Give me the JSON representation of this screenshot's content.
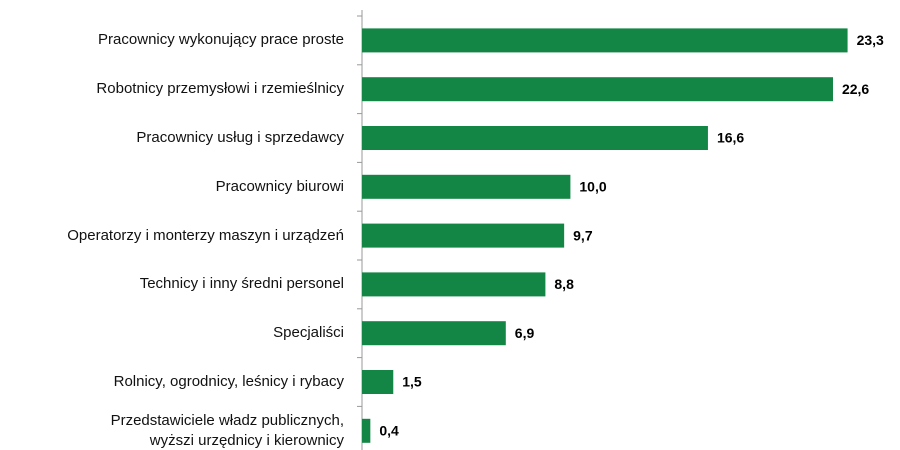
{
  "chart_data": {
    "type": "hbar",
    "categories": [
      "Pracownicy wykonujący prace proste",
      "Robotnicy przemysłowi i rzemieślnicy",
      "Pracownicy usług i sprzedawcy",
      "Pracownicy biurowi",
      "Operatorzy i monterzy maszyn i urządzeń",
      "Technicy i inny średni personel",
      "Specjaliści",
      "Rolnicy, ogrodnicy, leśnicy i rybacy",
      "Przedstawiciele władz publicznych,\nwyższi urzędnicy i kierownicy"
    ],
    "values": [
      23.3,
      22.6,
      16.6,
      10.0,
      9.7,
      8.8,
      6.9,
      1.5,
      0.4
    ],
    "value_labels": [
      "23,3",
      "22,6",
      "16,6",
      "10,0",
      "9,7",
      "8,8",
      "6,9",
      "1,5",
      "0,4"
    ],
    "color": "#138544",
    "xlim": [
      0,
      25
    ]
  }
}
